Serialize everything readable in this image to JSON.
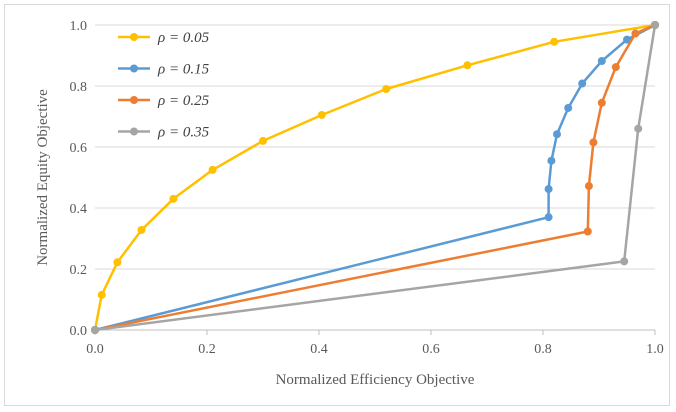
{
  "chart_data": {
    "type": "line",
    "title": "",
    "xlabel": "Normalized  Efficiency  Objective",
    "ylabel": "Normalized  Equity  Objective",
    "xlim": [
      0.0,
      1.0
    ],
    "ylim": [
      0.0,
      1.0
    ],
    "x_ticks": [
      "0.0",
      "0.2",
      "0.4",
      "0.6",
      "0.8",
      "1.0"
    ],
    "y_ticks": [
      "0.0",
      "0.2",
      "0.4",
      "0.6",
      "0.8",
      "1.0"
    ],
    "grid": "horizontal",
    "legend_position": "top-left",
    "series": [
      {
        "name": "ρ = 0.05",
        "color": "#FFC000",
        "points": [
          [
            0.0,
            0.0
          ],
          [
            0.012,
            0.115
          ],
          [
            0.04,
            0.222
          ],
          [
            0.083,
            0.328
          ],
          [
            0.14,
            0.43
          ],
          [
            0.21,
            0.525
          ],
          [
            0.3,
            0.62
          ],
          [
            0.405,
            0.705
          ],
          [
            0.52,
            0.79
          ],
          [
            0.665,
            0.868
          ],
          [
            0.82,
            0.945
          ],
          [
            1.0,
            1.0
          ]
        ]
      },
      {
        "name": "ρ = 0.15",
        "color": "#5B9BD5",
        "points": [
          [
            0.0,
            0.0
          ],
          [
            0.81,
            0.37
          ],
          [
            0.81,
            0.462
          ],
          [
            0.815,
            0.555
          ],
          [
            0.825,
            0.642
          ],
          [
            0.845,
            0.728
          ],
          [
            0.87,
            0.808
          ],
          [
            0.905,
            0.882
          ],
          [
            0.95,
            0.952
          ],
          [
            1.0,
            1.0
          ]
        ]
      },
      {
        "name": "ρ = 0.25",
        "color": "#ED7D31",
        "points": [
          [
            0.0,
            0.0
          ],
          [
            0.88,
            0.323
          ],
          [
            0.882,
            0.472
          ],
          [
            0.89,
            0.615
          ],
          [
            0.905,
            0.745
          ],
          [
            0.93,
            0.862
          ],
          [
            0.965,
            0.972
          ],
          [
            1.0,
            1.0
          ]
        ]
      },
      {
        "name": "ρ = 0.35",
        "color": "#A5A5A5",
        "points": [
          [
            0.0,
            0.0
          ],
          [
            0.945,
            0.225
          ],
          [
            0.97,
            0.66
          ],
          [
            1.0,
            1.0
          ]
        ]
      }
    ]
  }
}
